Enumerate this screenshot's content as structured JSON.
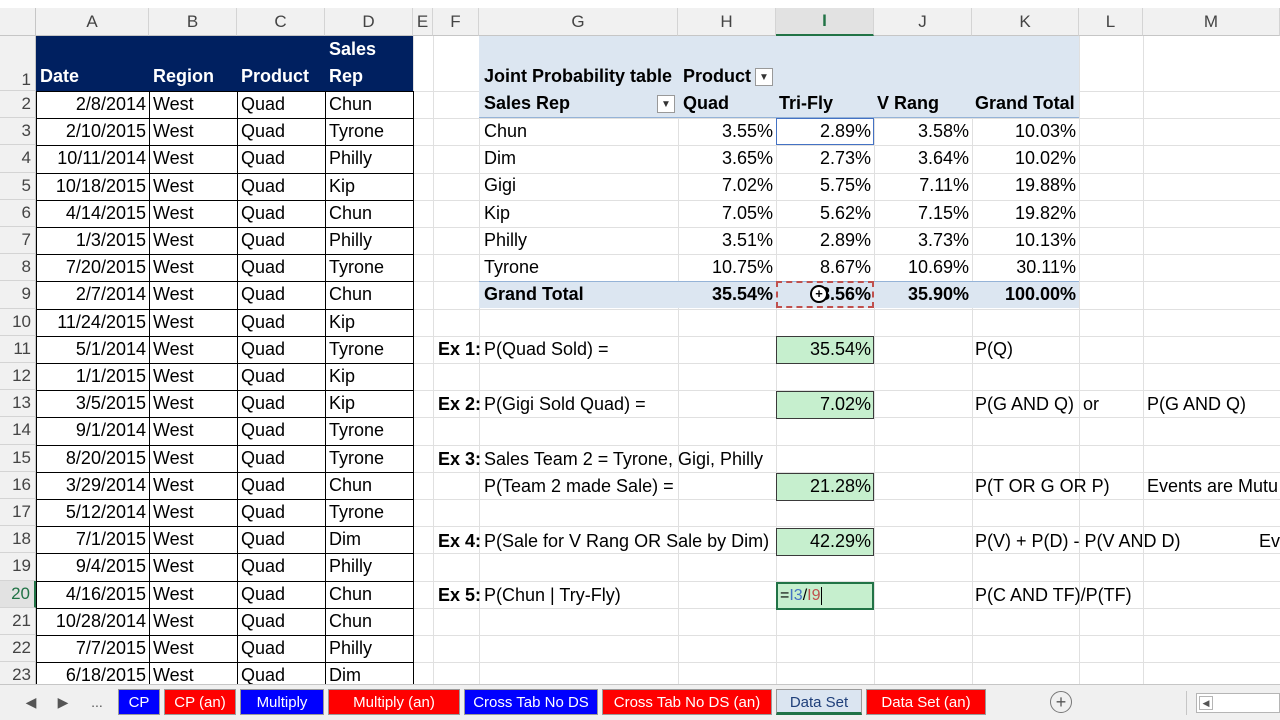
{
  "columns": [
    "A",
    "B",
    "C",
    "D",
    "E",
    "F",
    "G",
    "H",
    "I",
    "J",
    "K",
    "L",
    "M"
  ],
  "rows": [
    "1",
    "2",
    "3",
    "4",
    "5",
    "6",
    "7",
    "8",
    "9",
    "10",
    "11",
    "12",
    "13",
    "14",
    "15",
    "16",
    "17",
    "18",
    "19",
    "20",
    "21",
    "22",
    "23"
  ],
  "data_header": {
    "date": "Date",
    "region": "Region",
    "product": "Product",
    "sales_rep_line1": "Sales",
    "sales_rep_line2": "Rep"
  },
  "data_rows": [
    [
      "2/8/2014",
      "West",
      "Quad",
      "Chun"
    ],
    [
      "2/10/2015",
      "West",
      "Quad",
      "Tyrone"
    ],
    [
      "10/11/2014",
      "West",
      "Quad",
      "Philly"
    ],
    [
      "10/18/2015",
      "West",
      "Quad",
      "Kip"
    ],
    [
      "4/14/2015",
      "West",
      "Quad",
      "Chun"
    ],
    [
      "1/3/2015",
      "West",
      "Quad",
      "Philly"
    ],
    [
      "7/20/2015",
      "West",
      "Quad",
      "Tyrone"
    ],
    [
      "2/7/2014",
      "West",
      "Quad",
      "Chun"
    ],
    [
      "11/24/2015",
      "West",
      "Quad",
      "Kip"
    ],
    [
      "5/1/2014",
      "West",
      "Quad",
      "Tyrone"
    ],
    [
      "1/1/2015",
      "West",
      "Quad",
      "Kip"
    ],
    [
      "3/5/2015",
      "West",
      "Quad",
      "Kip"
    ],
    [
      "9/1/2014",
      "West",
      "Quad",
      "Tyrone"
    ],
    [
      "8/20/2015",
      "West",
      "Quad",
      "Tyrone"
    ],
    [
      "3/29/2014",
      "West",
      "Quad",
      "Chun"
    ],
    [
      "5/12/2014",
      "West",
      "Quad",
      "Tyrone"
    ],
    [
      "7/1/2015",
      "West",
      "Quad",
      "Dim"
    ],
    [
      "9/4/2015",
      "West",
      "Quad",
      "Philly"
    ],
    [
      "4/16/2015",
      "West",
      "Quad",
      "Chun"
    ],
    [
      "10/28/2014",
      "West",
      "Quad",
      "Chun"
    ],
    [
      "7/7/2015",
      "West",
      "Quad",
      "Philly"
    ],
    [
      "6/18/2015",
      "West",
      "Quad",
      "Dim"
    ]
  ],
  "pivot": {
    "title": "Joint Probability table",
    "col_field": "Product",
    "row_field": "Sales Rep",
    "col_headers": [
      "Quad",
      "Tri-Fly",
      "V Rang",
      "Grand Total"
    ],
    "rows": [
      {
        "rep": "Chun",
        "values": [
          "3.55%",
          "2.89%",
          "3.58%",
          "10.03%"
        ]
      },
      {
        "rep": "Dim",
        "values": [
          "3.65%",
          "2.73%",
          "3.64%",
          "10.02%"
        ]
      },
      {
        "rep": "Gigi",
        "values": [
          "7.02%",
          "5.75%",
          "7.11%",
          "19.88%"
        ]
      },
      {
        "rep": "Kip",
        "values": [
          "7.05%",
          "5.62%",
          "7.15%",
          "19.82%"
        ]
      },
      {
        "rep": "Philly",
        "values": [
          "3.51%",
          "2.89%",
          "3.73%",
          "10.13%"
        ]
      },
      {
        "rep": "Tyrone",
        "values": [
          "10.75%",
          "8.67%",
          "10.69%",
          "30.11%"
        ]
      }
    ],
    "total_label": "Grand Total",
    "total_values": [
      "35.54%",
      "28.56%",
      "35.90%",
      "100.00%"
    ],
    "total_tri_partial": "8.56%"
  },
  "examples": {
    "ex1": {
      "label": "Ex 1:",
      "text": "P(Quad Sold) =",
      "result": "35.54%",
      "note": "P(Q)"
    },
    "ex2": {
      "label": "Ex 2:",
      "text": "P(Gigi Sold Quad) =",
      "result": "7.02%",
      "note": "P(G AND Q)",
      "or": "or",
      "note2": "P(G AND Q)"
    },
    "ex3": {
      "label": "Ex 3:",
      "text": "Sales Team 2 = Tyrone, Gigi, Philly",
      "text2": "P(Team 2 made Sale) =",
      "result": "21.28%",
      "note": "P(T OR G OR P)",
      "note2": "Events are Mutu"
    },
    "ex4": {
      "label": "Ex 4:",
      "text": "P(Sale for V Rang OR Sale by Dim)",
      "result": "42.29%",
      "note": "P(V) + P(D) - P(V AND D)",
      "note2": "Eve"
    },
    "ex5": {
      "label": "Ex 5:",
      "text": "P(Chun | Try-Fly)",
      "formula_eq": "=",
      "formula_ref1": "I3",
      "formula_slash": "/",
      "formula_ref2": "I9",
      "note": "P(C AND TF)/P(TF)"
    }
  },
  "tabs": {
    "ellipsis": "...",
    "items": [
      {
        "label": "CP",
        "color": "blue"
      },
      {
        "label": "CP (an)",
        "color": "red"
      },
      {
        "label": "Multiply",
        "color": "blue"
      },
      {
        "label": "Multiply (an)",
        "color": "red"
      },
      {
        "label": "Cross Tab No DS",
        "color": "blue"
      },
      {
        "label": "Cross Tab No DS (an)",
        "color": "red"
      },
      {
        "label": "Data Set",
        "color": "active"
      },
      {
        "label": "Data Set (an)",
        "color": "red"
      }
    ],
    "add": "+"
  },
  "colors": {
    "header_navy": "#002060",
    "pivot_blue": "#dce6f1",
    "result_green": "#c6efce",
    "select_green": "#217346"
  }
}
